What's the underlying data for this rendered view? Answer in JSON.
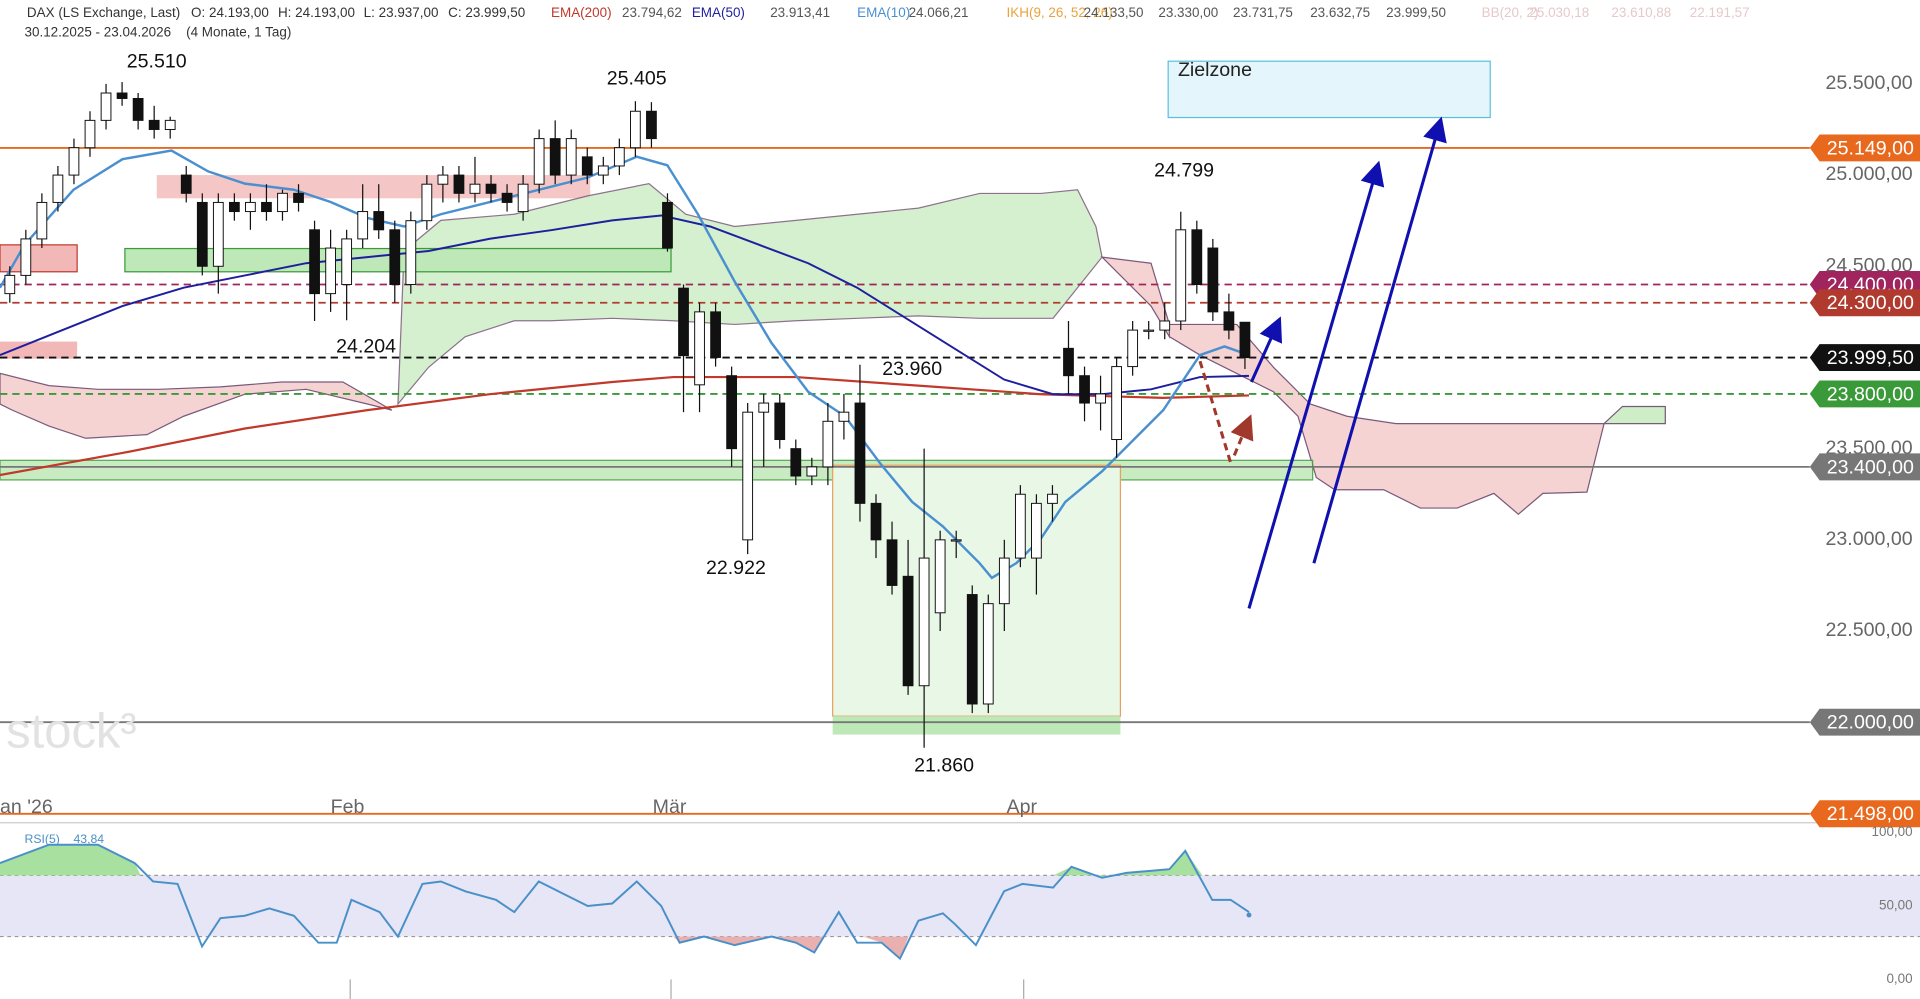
{
  "chart_data": {
    "type": "candlestick",
    "header": {
      "symbol": "DAX (LS Exchange, Last)",
      "quote": [
        "O: 24.193,00",
        "H: 24.193,00",
        "L: 23.937,00",
        "C: 23.999,50"
      ],
      "indicators": [
        {
          "name": "EMA(200)",
          "values": [
            "23.794,62"
          ],
          "color": "#c0392b"
        },
        {
          "name": "EMA(50)",
          "values": [
            "23.913,41"
          ],
          "color": "#1f1f9e"
        },
        {
          "name": "EMA(10)",
          "values": [
            "24.066,21"
          ],
          "color": "#4a90d0"
        },
        {
          "name": "IKH(9, 26, 52, 26)",
          "values": [
            "24.133,50",
            "23.330,00",
            "23.731,75",
            "23.632,75",
            "23.999,50"
          ],
          "color": "#e8a33d"
        },
        {
          "name": "BB(20, 2)",
          "values": [
            "25.030,18",
            "23.610,88",
            "22.191,57"
          ],
          "color": "#e6c9c9"
        }
      ],
      "range": "30.12.2025 - 23.04.2026",
      "period": "(4 Monate, 1 Tag)"
    },
    "watermark": "stock³",
    "x_labels": [
      "an '26",
      "Feb",
      "Mär",
      "Apr"
    ],
    "ylim": [
      21496,
      25960
    ],
    "yticks": [
      {
        "value": 25500,
        "label": "25.500,00"
      },
      {
        "value": 25000,
        "label": "25.000,00"
      },
      {
        "value": 24500,
        "label": "24.500,00"
      },
      {
        "value": 23500,
        "label": "23.500,00"
      },
      {
        "value": 23000,
        "label": "23.000,00"
      },
      {
        "value": 22500,
        "label": "22.500,00"
      },
      {
        "value": 22000,
        "label": "22.000,00"
      }
    ],
    "levels": [
      {
        "value": 25149,
        "label": "25.149,00",
        "color": "#e8691e",
        "dash": false
      },
      {
        "value": 24400,
        "label": "24.400,00",
        "color": "#a0245e",
        "dash": true
      },
      {
        "value": 24300,
        "label": "24.300,00",
        "color": "#b03a2e",
        "dash": true
      },
      {
        "value": 23999.5,
        "label": "23.999,50",
        "color": "#111111",
        "dash": true
      },
      {
        "value": 23800,
        "label": "23.800,00",
        "color": "#3a9a3a",
        "dash": true
      },
      {
        "value": 23400,
        "label": "23.400,00",
        "color": "#777777",
        "dash": false
      },
      {
        "value": 22000,
        "label": "22.000,00",
        "color": "#777777",
        "dash": false
      },
      {
        "value": 21498,
        "label": "21.498,00",
        "color": "#e8691e",
        "dash": false
      }
    ],
    "annotations": [
      {
        "value": 25510,
        "label": "25.510"
      },
      {
        "value": 25405,
        "label": "25.405"
      },
      {
        "value": 24204,
        "label": "24.204"
      },
      {
        "value": 22922,
        "label": "22.922"
      },
      {
        "value": 23960,
        "label": "23.960"
      },
      {
        "value": 21860,
        "label": "21.860"
      },
      {
        "value": 24799,
        "label": "24.799"
      }
    ],
    "target_zone": "Zielzone",
    "ohlc": [
      [
        24350,
        24500,
        24300,
        24450
      ],
      [
        24450,
        24700,
        24400,
        24650
      ],
      [
        24650,
        24900,
        24600,
        24850
      ],
      [
        24850,
        25050,
        24800,
        25000
      ],
      [
        25000,
        25200,
        24950,
        25150
      ],
      [
        25150,
        25350,
        25100,
        25300
      ],
      [
        25300,
        25500,
        25250,
        25450
      ],
      [
        25450,
        25510,
        25380,
        25420
      ],
      [
        25420,
        25450,
        25250,
        25300
      ],
      [
        25300,
        25380,
        25200,
        25250
      ],
      [
        25250,
        25320,
        25200,
        25300
      ],
      [
        25000,
        25050,
        24850,
        24900
      ],
      [
        24850,
        24900,
        24450,
        24500
      ],
      [
        24500,
        24900,
        24350,
        24850
      ],
      [
        24850,
        24900,
        24750,
        24800
      ],
      [
        24800,
        24900,
        24700,
        24850
      ],
      [
        24850,
        24950,
        24750,
        24800
      ],
      [
        24800,
        24920,
        24750,
        24900
      ],
      [
        24900,
        24950,
        24800,
        24850
      ],
      [
        24700,
        24750,
        24200,
        24350
      ],
      [
        24350,
        24700,
        24250,
        24600
      ],
      [
        24400,
        24700,
        24204,
        24650
      ],
      [
        24650,
        24950,
        24600,
        24800
      ],
      [
        24800,
        24950,
        24650,
        24700
      ],
      [
        24700,
        24750,
        24300,
        24400
      ],
      [
        24400,
        24800,
        24350,
        24750
      ],
      [
        24750,
        25000,
        24700,
        24950
      ],
      [
        24950,
        25050,
        24850,
        25000
      ],
      [
        25000,
        25050,
        24850,
        24900
      ],
      [
        24900,
        25100,
        24850,
        24950
      ],
      [
        24950,
        25000,
        24850,
        24900
      ],
      [
        24900,
        24950,
        24800,
        24850
      ],
      [
        24800,
        25000,
        24750,
        24950
      ],
      [
        24950,
        25250,
        24900,
        25200
      ],
      [
        25200,
        25300,
        24950,
        25000
      ],
      [
        25000,
        25250,
        24950,
        25200
      ],
      [
        25100,
        25150,
        24950,
        25000
      ],
      [
        25000,
        25100,
        24950,
        25050
      ],
      [
        25050,
        25200,
        25000,
        25150
      ],
      [
        25150,
        25405,
        25100,
        25350
      ],
      [
        25350,
        25400,
        25150,
        25200
      ],
      [
        24850,
        24900,
        24580,
        24600
      ],
      [
        24380,
        24400,
        23700,
        24010
      ],
      [
        23850,
        24300,
        23700,
        24250
      ],
      [
        24250,
        24300,
        23950,
        24000
      ],
      [
        23900,
        23950,
        23400,
        23500
      ],
      [
        23000,
        23750,
        22922,
        23700
      ],
      [
        23700,
        23800,
        23400,
        23750
      ],
      [
        23750,
        23800,
        23500,
        23550
      ],
      [
        23500,
        23550,
        23300,
        23350
      ],
      [
        23350,
        23450,
        23300,
        23400
      ],
      [
        23400,
        23750,
        23300,
        23650
      ],
      [
        23650,
        23800,
        23550,
        23700
      ],
      [
        23750,
        23960,
        23100,
        23200
      ],
      [
        23200,
        23250,
        22900,
        23000
      ],
      [
        23000,
        23100,
        22700,
        22750
      ],
      [
        22800,
        23000,
        22150,
        22200
      ],
      [
        22200,
        23500,
        21860,
        22900
      ],
      [
        22600,
        23050,
        22500,
        23000
      ],
      [
        23000,
        23050,
        22900,
        23000
      ],
      [
        22700,
        22750,
        22050,
        22100
      ],
      [
        22100,
        22700,
        22050,
        22650
      ],
      [
        22650,
        23000,
        22500,
        22900
      ],
      [
        22900,
        23300,
        22850,
        23250
      ],
      [
        22900,
        23250,
        22700,
        23200
      ],
      [
        23200,
        23300,
        23100,
        23250
      ],
      [
        24050,
        24200,
        23800,
        23900
      ],
      [
        23900,
        23950,
        23650,
        23750
      ],
      [
        23750,
        23900,
        23600,
        23800
      ],
      [
        23550,
        24000,
        23450,
        23950
      ],
      [
        23950,
        24200,
        23900,
        24150
      ],
      [
        24150,
        24200,
        24100,
        24150
      ],
      [
        24150,
        24300,
        24100,
        24200
      ],
      [
        24200,
        24799,
        24150,
        24700
      ],
      [
        24700,
        24750,
        24350,
        24400
      ],
      [
        24600,
        24650,
        24200,
        24250
      ],
      [
        24250,
        24350,
        24100,
        24150
      ],
      [
        24193,
        24193,
        23937,
        23999.5
      ]
    ],
    "rsi": {
      "name": "RSI(5)",
      "last": {
        "value": 43.84,
        "label": "43,84"
      },
      "color": "#4a90c8",
      "ylim": [
        0,
        100
      ],
      "yticks": [
        {
          "value": 100,
          "label": "100,00"
        },
        {
          "value": 50,
          "label": "50,00"
        },
        {
          "value": 0,
          "label": "0,00"
        }
      ]
    }
  }
}
